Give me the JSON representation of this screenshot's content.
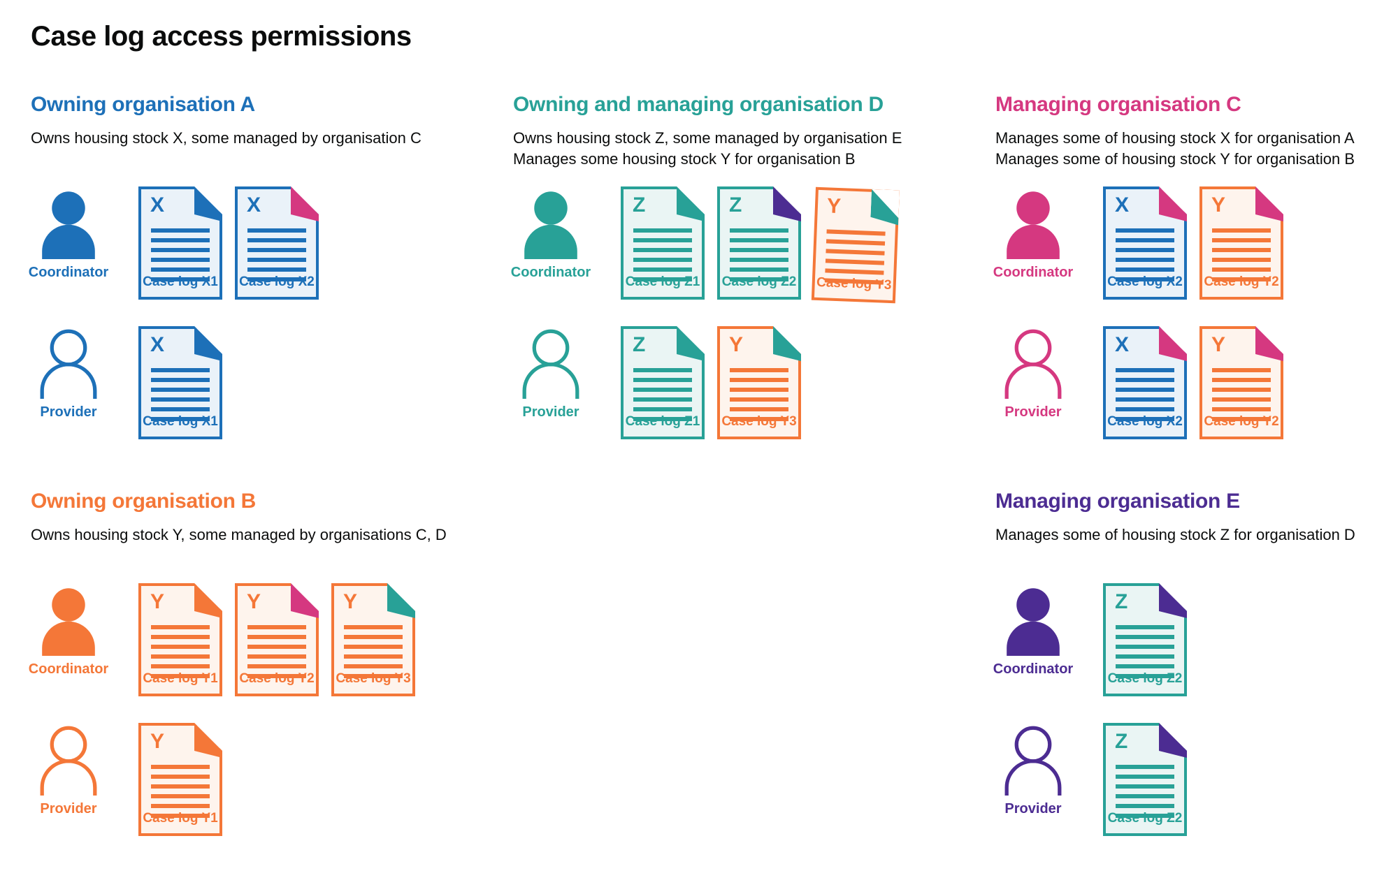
{
  "page_title": "Case log access permissions",
  "colors": {
    "blue": "#1d70b8",
    "teal": "#28a197",
    "orange": "#f47738",
    "pink": "#d53880",
    "purple": "#4c2c92",
    "text": "#0b0c0c",
    "blue_tint": "#eaf2f9",
    "teal_tint": "#eaf5f4",
    "orange_tint": "#fef4ed"
  },
  "roles": {
    "coordinator": "Coordinator",
    "provider": "Provider"
  },
  "orgs": [
    {
      "id": "owning-organisation-a",
      "heading": "Owning organisation A",
      "color": "blue",
      "grid_column": 1,
      "grid_row": 1,
      "description": [
        "Owns housing stock X, some managed by organisation C"
      ],
      "rows": [
        {
          "role": "Coordinator",
          "person": "filled",
          "docs": [
            {
              "letter": "X",
              "label": "Case log X1",
              "doc_color": "blue",
              "fold_color": "blue"
            },
            {
              "letter": "X",
              "label": "Case log X2",
              "doc_color": "blue",
              "fold_color": "pink"
            }
          ]
        },
        {
          "role": "Provider",
          "person": "outline",
          "docs": [
            {
              "letter": "X",
              "label": "Case log X1",
              "doc_color": "blue",
              "fold_color": "blue"
            }
          ]
        }
      ]
    },
    {
      "id": "owning-and-managing-organisation-d",
      "heading": "Owning and managing organisation D",
      "color": "teal",
      "grid_column": 2,
      "grid_row": 1,
      "description": [
        "Owns housing stock Z, some managed by organisation E",
        "Manages some housing stock Y for organisation B"
      ],
      "rows": [
        {
          "role": "Coordinator",
          "person": "filled",
          "docs": [
            {
              "letter": "Z",
              "label": "Case log Z1",
              "doc_color": "teal",
              "fold_color": "teal"
            },
            {
              "letter": "Z",
              "label": "Case log Z2",
              "doc_color": "teal",
              "fold_color": "purple"
            },
            {
              "letter": "Y",
              "label": "Case log Y3",
              "doc_color": "orange",
              "fold_color": "teal",
              "tilted": true
            }
          ]
        },
        {
          "role": "Provider",
          "person": "outline",
          "docs": [
            {
              "letter": "Z",
              "label": "Case log Z1",
              "doc_color": "teal",
              "fold_color": "teal"
            },
            {
              "letter": "Y",
              "label": "Case log Y3",
              "doc_color": "orange",
              "fold_color": "teal"
            }
          ]
        }
      ]
    },
    {
      "id": "managing-organisation-c",
      "heading": "Managing organisation C",
      "color": "pink",
      "grid_column": 3,
      "grid_row": 1,
      "description": [
        "Manages some of housing stock X for organisation A",
        "Manages some of housing stock Y for organisation B"
      ],
      "rows": [
        {
          "role": "Coordinator",
          "person": "filled",
          "docs": [
            {
              "letter": "X",
              "label": "Case log X2",
              "doc_color": "blue",
              "fold_color": "pink"
            },
            {
              "letter": "Y",
              "label": "Case log Y2",
              "doc_color": "orange",
              "fold_color": "pink"
            }
          ]
        },
        {
          "role": "Provider",
          "person": "outline",
          "docs": [
            {
              "letter": "X",
              "label": "Case log X2",
              "doc_color": "blue",
              "fold_color": "pink"
            },
            {
              "letter": "Y",
              "label": "Case log Y2",
              "doc_color": "orange",
              "fold_color": "pink"
            }
          ]
        }
      ]
    },
    {
      "id": "owning-organisation-b",
      "heading": "Owning organisation B",
      "color": "orange",
      "grid_column": 1,
      "grid_row": 2,
      "description": [
        "Owns housing stock Y, some managed by organisations C, D"
      ],
      "rows": [
        {
          "role": "Coordinator",
          "person": "filled",
          "docs": [
            {
              "letter": "Y",
              "label": "Case log Y1",
              "doc_color": "orange",
              "fold_color": "orange"
            },
            {
              "letter": "Y",
              "label": "Case log Y2",
              "doc_color": "orange",
              "fold_color": "pink"
            },
            {
              "letter": "Y",
              "label": "Case log Y3",
              "doc_color": "orange",
              "fold_color": "teal"
            }
          ]
        },
        {
          "role": "Provider",
          "person": "outline",
          "docs": [
            {
              "letter": "Y",
              "label": "Case log Y1",
              "doc_color": "orange",
              "fold_color": "orange"
            }
          ]
        }
      ]
    },
    {
      "id": "managing-organisation-e",
      "heading": "Managing organisation E",
      "color": "purple",
      "grid_column": 3,
      "grid_row": 2,
      "description": [
        "Manages some of housing stock Z for organisation D"
      ],
      "rows": [
        {
          "role": "Coordinator",
          "person": "filled",
          "docs": [
            {
              "letter": "Z",
              "label": "Case log Z2",
              "doc_color": "teal",
              "fold_color": "purple"
            }
          ]
        },
        {
          "role": "Provider",
          "person": "outline",
          "docs": [
            {
              "letter": "Z",
              "label": "Case log Z2",
              "doc_color": "teal",
              "fold_color": "purple"
            }
          ]
        }
      ]
    }
  ]
}
